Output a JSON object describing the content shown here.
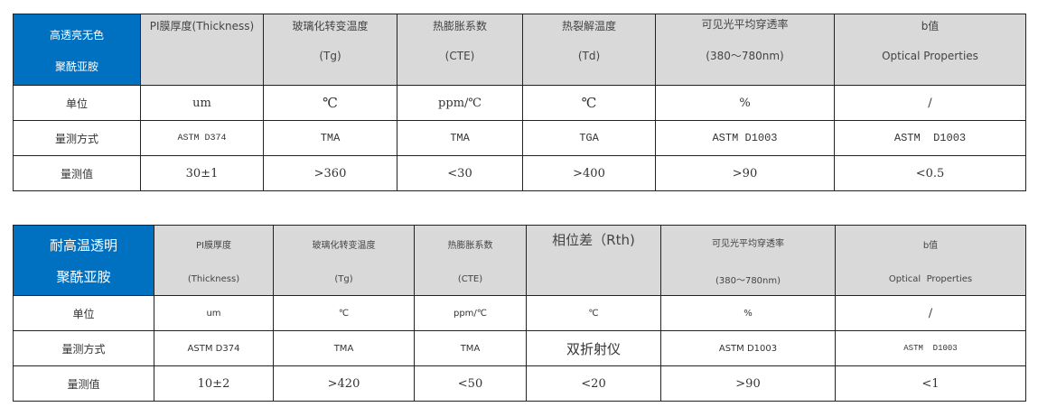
{
  "table1": {
    "corner": [
      "高透亮无色",
      "聚酰亚胺"
    ],
    "headers": [
      [
        "PI膜厚度(Thickness)",
        ""
      ],
      [
        "玻璃化转变温度",
        "(Tg)"
      ],
      [
        "热膨胀系数",
        "(CTE)"
      ],
      [
        "热裂解温度",
        "(Td)"
      ],
      [
        "可见光平均穿透率",
        "(380～780nm)"
      ],
      [
        "b值",
        "Optical Properties"
      ]
    ],
    "rows": [
      {
        "label": "单位",
        "cells": [
          "um",
          "℃",
          "ppm/℃",
          "℃",
          "%",
          "/"
        ]
      },
      {
        "label": "量测方式",
        "cells": [
          "ASTM D374",
          "TMA",
          "TMA",
          "TGA",
          "ASTM D1003",
          "ASTM  D1003"
        ]
      },
      {
        "label": "量测值",
        "cells": [
          "30±1",
          ">360",
          "<30",
          ">400",
          ">90",
          "<0.5"
        ]
      }
    ]
  },
  "table2": {
    "corner": [
      "耐高温透明",
      "聚酰亚胺"
    ],
    "headers": [
      [
        "PI膜厚度",
        "(Thickness)"
      ],
      [
        "玻璃化转变温度",
        "(Tg)"
      ],
      [
        "热膨胀系数",
        "(CTE)"
      ],
      [
        "相位差（Rth)",
        ""
      ],
      [
        "可见光平均穿透率",
        "(380～780nm)"
      ],
      [
        "b值",
        "Optical  Properties"
      ]
    ],
    "rows": [
      {
        "label": "单位",
        "cells": [
          "um",
          "℃",
          "ppm/℃",
          "℃",
          "%",
          "/"
        ]
      },
      {
        "label": "量测方式",
        "cells": [
          "ASTM D374",
          "TMA",
          "TMA",
          "双折射仪",
          "ASTM D1003",
          "ASTM  D1003"
        ]
      },
      {
        "label": "量测值",
        "cells": [
          "10±2",
          ">420",
          "<50",
          "<20",
          ">90",
          "<1"
        ]
      }
    ]
  },
  "colors": {
    "corner": "#0070c0",
    "header": "#d9d9d9"
  }
}
